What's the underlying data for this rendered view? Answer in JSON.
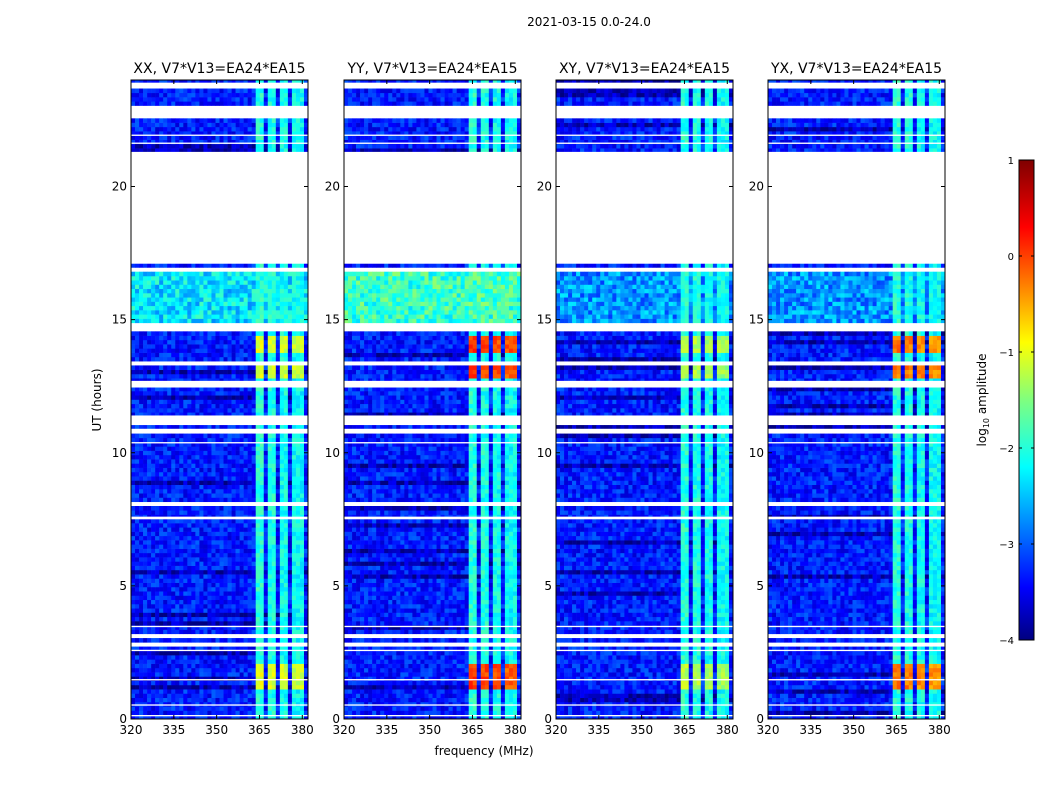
{
  "chart_data": {
    "type": "heatmap",
    "suptitle": "2021-03-15 0.0-24.0",
    "xlabel": "frequency (MHz)",
    "ylabel": "UT (hours)",
    "xlim": [
      320,
      382
    ],
    "ylim": [
      0,
      24
    ],
    "xticks": [
      320,
      335,
      350,
      365,
      380
    ],
    "yticks": [
      0,
      5,
      10,
      15,
      20
    ],
    "colorbar": {
      "label": "log10 amplitude",
      "label_base": "log",
      "label_sub": "10",
      "label_rest": " amplitude",
      "range": [
        -4,
        1
      ],
      "ticks": [
        1,
        0,
        -1,
        -2,
        -3,
        -4
      ],
      "tick_labels": [
        "1",
        "0",
        "−1",
        "−2",
        "−3",
        "−4"
      ],
      "colormap": "jet"
    },
    "blank_gaps_hours": [
      [
        0.1,
        0.15
      ],
      [
        0.5,
        0.55
      ],
      [
        1.45,
        1.5
      ],
      [
        2.55,
        2.6
      ],
      [
        2.8,
        2.85
      ],
      [
        3.1,
        3.15
      ],
      [
        3.45,
        3.5
      ],
      [
        7.5,
        7.6
      ],
      [
        8.05,
        8.1
      ],
      [
        10.35,
        10.4
      ],
      [
        10.8,
        10.9
      ],
      [
        11.05,
        11.4
      ],
      [
        12.45,
        12.7
      ],
      [
        13.35,
        13.4
      ],
      [
        14.6,
        14.85
      ],
      [
        16.85,
        16.9
      ],
      [
        17.1,
        21.3
      ],
      [
        21.6,
        21.65
      ],
      [
        21.9,
        21.95
      ],
      [
        22.6,
        23.0
      ],
      [
        23.7,
        23.9
      ]
    ],
    "rfi_band_mhz": [
      363,
      381
    ],
    "panels": [
      {
        "title": "XX, V7*V13=EA24*EA15",
        "rfi_peak_log10": -0.8,
        "broadband_peak_log10": -2.0
      },
      {
        "title": "YY, V7*V13=EA24*EA15",
        "rfi_peak_log10": 0.3,
        "broadband_peak_log10": -1.6
      },
      {
        "title": "XY, V7*V13=EA24*EA15",
        "rfi_peak_log10": -1.0,
        "broadband_peak_log10": -2.4
      },
      {
        "title": "YX, V7*V13=EA24*EA15",
        "rfi_peak_log10": 0.0,
        "broadband_peak_log10": -2.4
      }
    ]
  }
}
